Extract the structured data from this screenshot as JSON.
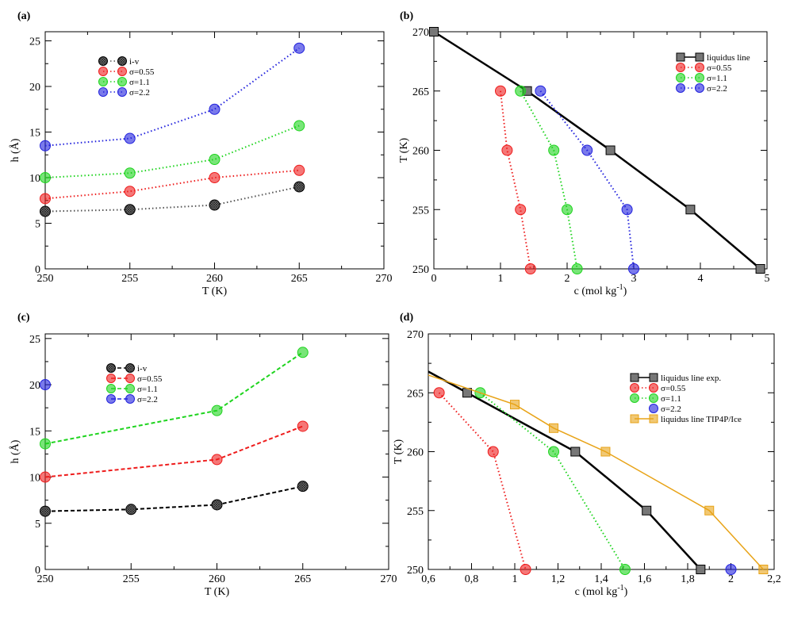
{
  "chart_data": [
    {
      "id": "a",
      "panel_label": "(a)",
      "type": "scatter",
      "xlabel": "T (K)",
      "ylabel": "h (Å)",
      "xlim": [
        250,
        270
      ],
      "ylim": [
        0,
        26
      ],
      "xticks": [
        250,
        255,
        260,
        265,
        270
      ],
      "yticks": [
        0,
        5,
        10,
        15,
        20,
        25
      ],
      "legend_position": "top-left",
      "series": [
        {
          "name": "i-v",
          "color": "#555555",
          "line": "dotted",
          "marker": "circle-hatched",
          "x": [
            250,
            255,
            260,
            265
          ],
          "y": [
            6.3,
            6.5,
            7.0,
            9.0
          ]
        },
        {
          "name": "σ=0.55",
          "color": "#ee1c1c",
          "line": "dotted",
          "marker": "circle",
          "x": [
            250,
            255,
            260,
            265
          ],
          "y": [
            7.7,
            8.5,
            10.0,
            10.8
          ]
        },
        {
          "name": "σ=1.1",
          "color": "#1ed41e",
          "line": "dotted",
          "marker": "circle",
          "x": [
            250,
            255,
            260,
            265
          ],
          "y": [
            10.0,
            10.5,
            12.0,
            15.7
          ]
        },
        {
          "name": "σ=2.2",
          "color": "#2222dd",
          "line": "dotted",
          "marker": "circle",
          "x": [
            250,
            255,
            260,
            265
          ],
          "y": [
            13.5,
            14.3,
            17.5,
            24.2
          ]
        }
      ]
    },
    {
      "id": "b",
      "panel_label": "(b)",
      "type": "line",
      "xlabel": "c (mol kg",
      "xlabel_sup": "-1",
      "xlabel_end": ")",
      "ylabel": "T (K)",
      "xlim": [
        0,
        5
      ],
      "ylim": [
        250,
        270
      ],
      "xticks": [
        0,
        1,
        2,
        3,
        4,
        5
      ],
      "yticks": [
        250,
        255,
        260,
        265,
        270
      ],
      "legend_position": "top-right",
      "series": [
        {
          "name": "liquidus line",
          "color": "#000000",
          "line": "solid",
          "marker": "square",
          "x": [
            0,
            1.4,
            2.65,
            3.85,
            4.9
          ],
          "y": [
            270,
            265,
            260,
            255,
            250
          ]
        },
        {
          "name": "σ=0.55",
          "color": "#ee1c1c",
          "line": "dotted",
          "marker": "circle",
          "x": [
            1.0,
            1.1,
            1.3,
            1.45
          ],
          "y": [
            265,
            260,
            255,
            250
          ]
        },
        {
          "name": "σ=1.1",
          "color": "#1ed41e",
          "line": "dotted",
          "marker": "circle",
          "x": [
            1.3,
            1.8,
            2.0,
            2.15
          ],
          "y": [
            265,
            260,
            255,
            250
          ]
        },
        {
          "name": "σ=2.2",
          "color": "#2222dd",
          "line": "dotted",
          "marker": "circle",
          "x": [
            1.6,
            2.3,
            2.9,
            3.0
          ],
          "y": [
            265,
            260,
            255,
            250
          ]
        }
      ]
    },
    {
      "id": "c",
      "panel_label": "(c)",
      "type": "scatter",
      "xlabel": "T (K)",
      "ylabel": "h (Å)",
      "xlim": [
        250,
        270
      ],
      "ylim": [
        0,
        25.5
      ],
      "xticks": [
        250,
        255,
        260,
        265,
        270
      ],
      "yticks": [
        0,
        5,
        10,
        15,
        20,
        25
      ],
      "legend_position": "top-left",
      "series": [
        {
          "name": "i-v",
          "color": "#000000",
          "line": "dashed",
          "marker": "circle-hatched",
          "x": [
            250,
            255,
            260,
            265
          ],
          "y": [
            6.3,
            6.5,
            7.0,
            9.0
          ]
        },
        {
          "name": "σ=0.55",
          "color": "#ee1c1c",
          "line": "dashed",
          "marker": "circle",
          "x": [
            250,
            260,
            265
          ],
          "y": [
            10.0,
            11.9,
            15.5
          ]
        },
        {
          "name": "σ=1.1",
          "color": "#1ed41e",
          "line": "dashed",
          "marker": "circle",
          "x": [
            250,
            260,
            265
          ],
          "y": [
            13.6,
            17.2,
            23.5
          ]
        },
        {
          "name": "σ=2.2",
          "color": "#2222dd",
          "line": "dashed",
          "marker": "circle",
          "x": [
            250
          ],
          "y": [
            20.0
          ]
        }
      ]
    },
    {
      "id": "d",
      "panel_label": "(d)",
      "type": "line",
      "xlabel": "c (mol kg",
      "xlabel_sup": "-1",
      "xlabel_end": ")",
      "ylabel": "T (K)",
      "xlim": [
        0.6,
        2.2
      ],
      "ylim": [
        250,
        270
      ],
      "xticks": [
        0.6,
        0.8,
        1.0,
        1.2,
        1.4,
        1.6,
        1.8,
        2.0,
        2.2
      ],
      "xtick_labels": [
        "0,6",
        "0,8",
        "1",
        "1,2",
        "1,4",
        "1,6",
        "1,8",
        "2",
        "2,2"
      ],
      "yticks": [
        250,
        255,
        260,
        265,
        270
      ],
      "legend_position": "top-right",
      "series": [
        {
          "name": "liquidus line exp.",
          "color": "#000000",
          "line": "solid",
          "marker": "square",
          "x": [
            0.6,
            0.78,
            1.28,
            1.61,
            1.86
          ],
          "y": [
            266.8,
            265,
            260,
            255,
            250
          ],
          "marker_from": 1
        },
        {
          "name": "σ=0.55",
          "color": "#ee1c1c",
          "line": "dotted",
          "marker": "circle",
          "x": [
            0.65,
            0.9,
            1.05
          ],
          "y": [
            265,
            260,
            250
          ]
        },
        {
          "name": "σ=1.1",
          "color": "#1ed41e",
          "line": "dotted",
          "marker": "circle",
          "x": [
            0.84,
            1.18,
            1.51
          ],
          "y": [
            265,
            260,
            250
          ]
        },
        {
          "name": "σ=2.2",
          "color": "#2222dd",
          "line": "none",
          "marker": "circle",
          "x": [
            2.0
          ],
          "y": [
            250
          ]
        },
        {
          "name": "liquidus line TIP4P/Ice",
          "color": "#e8a317",
          "line": "solid",
          "marker": "square",
          "x": [
            0.6,
            1.0,
            1.18,
            1.42,
            1.9,
            2.15
          ],
          "y": [
            266.5,
            264,
            262,
            260,
            255,
            250
          ],
          "marker_from": 1
        }
      ]
    }
  ]
}
